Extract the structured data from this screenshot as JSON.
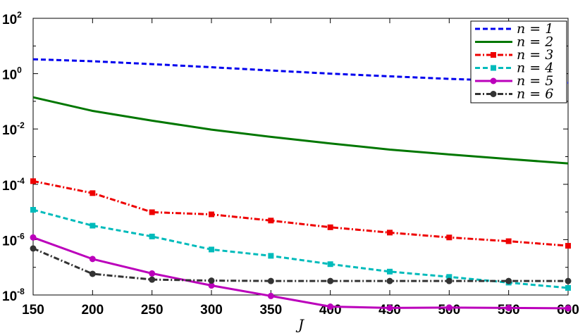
{
  "chart_data": {
    "type": "line",
    "title": "",
    "xlabel": "J",
    "ylabel": "",
    "yscale": "log",
    "xlim": [
      150,
      600
    ],
    "ylim": [
      1e-08,
      100
    ],
    "grid": false,
    "legend_position": "top-right",
    "x": [
      150,
      200,
      250,
      300,
      350,
      400,
      450,
      500,
      550,
      600
    ],
    "xtick_labels": [
      "150",
      "200",
      "250",
      "300",
      "350",
      "400",
      "450",
      "500",
      "550",
      "600"
    ],
    "ytick_labels": [
      {
        "base": "10",
        "exp": "2"
      },
      {
        "base": "10",
        "exp": "0"
      },
      {
        "base": "10",
        "exp": "-2"
      },
      {
        "base": "10",
        "exp": "-4"
      },
      {
        "base": "10",
        "exp": "-6"
      },
      {
        "base": "10",
        "exp": "-8"
      }
    ],
    "series": [
      {
        "name": "n = 1",
        "color": "#0000ee",
        "dash": "dashed",
        "marker": "none",
        "values": [
          3.3,
          2.8,
          2.2,
          1.7,
          1.3,
          1.0,
          0.8,
          0.65,
          0.55,
          0.47
        ]
      },
      {
        "name": "n = 2",
        "color": "#007700",
        "dash": "solid",
        "marker": "none",
        "values": [
          0.14,
          0.045,
          0.02,
          0.0095,
          0.0052,
          0.003,
          0.0018,
          0.0012,
          0.00082,
          0.00057
        ]
      },
      {
        "name": "n = 3",
        "color": "#ee0000",
        "dash": "dashdot",
        "marker": "square",
        "values": [
          0.00013,
          4.8e-05,
          9.8e-06,
          8.2e-06,
          4.9e-06,
          2.8e-06,
          1.8e-06,
          1.2e-06,
          8.8e-07,
          6e-07
        ]
      },
      {
        "name": "n = 4",
        "color": "#00bbbb",
        "dash": "dashed",
        "marker": "square",
        "values": [
          1.2e-05,
          3.2e-06,
          1.3e-06,
          4.4e-07,
          2.6e-07,
          1.3e-07,
          7e-08,
          4.5e-08,
          2.8e-08,
          1.8e-08
        ]
      },
      {
        "name": "n = 5",
        "color": "#bb00bb",
        "dash": "solid",
        "marker": "circle",
        "values": [
          1.2e-06,
          2e-07,
          6e-08,
          2.2e-08,
          9.2e-09,
          3.8e-09,
          3.4e-09,
          3.5e-09,
          3.4e-09,
          3.3e-09
        ]
      },
      {
        "name": "n = 6",
        "color": "#333333",
        "dash": "dashdot",
        "marker": "circle",
        "values": [
          4.8e-07,
          5.8e-08,
          3.6e-08,
          3.3e-08,
          3.2e-08,
          3.2e-08,
          3.2e-08,
          3.2e-08,
          3.2e-08,
          3.2e-08
        ]
      }
    ]
  }
}
